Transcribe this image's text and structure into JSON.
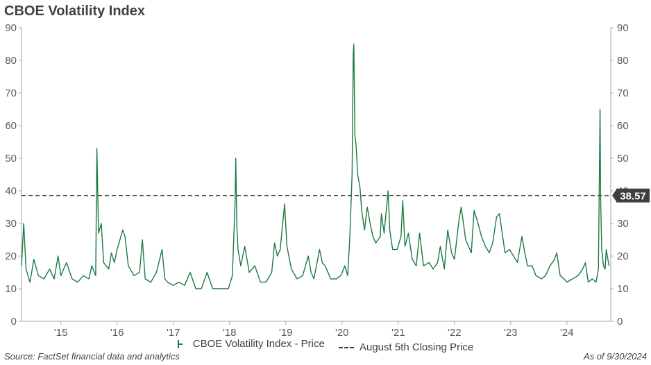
{
  "chart_data": {
    "type": "line",
    "title": "CBOE Volatility Index",
    "ylim": [
      0,
      90
    ],
    "yticks": [
      "0",
      "10",
      "20",
      "30",
      "40",
      "50",
      "60",
      "70",
      "80",
      "90"
    ],
    "xlim": [
      2014.3,
      2024.78
    ],
    "xticks": [
      {
        "label": "'15",
        "x": 2015.0
      },
      {
        "label": "'16",
        "x": 2016.0
      },
      {
        "label": "'17",
        "x": 2017.0
      },
      {
        "label": "'18",
        "x": 2018.0
      },
      {
        "label": "'19",
        "x": 2019.0
      },
      {
        "label": "'20",
        "x": 2020.0
      },
      {
        "label": "'21",
        "x": 2021.0
      },
      {
        "label": "'22",
        "x": 2022.0
      },
      {
        "label": "'23",
        "x": 2023.0
      },
      {
        "label": "'24",
        "x": 2024.0
      }
    ],
    "series": [
      {
        "name": "CBOE Volatility Index - Price",
        "color": "#1b7a43",
        "points": [
          [
            2014.3,
            17
          ],
          [
            2014.34,
            30
          ],
          [
            2014.38,
            16
          ],
          [
            2014.45,
            12
          ],
          [
            2014.52,
            19
          ],
          [
            2014.6,
            14
          ],
          [
            2014.7,
            13
          ],
          [
            2014.8,
            16
          ],
          [
            2014.88,
            13
          ],
          [
            2014.95,
            20
          ],
          [
            2015.0,
            14
          ],
          [
            2015.1,
            18
          ],
          [
            2015.2,
            13
          ],
          [
            2015.3,
            12
          ],
          [
            2015.4,
            14
          ],
          [
            2015.5,
            13
          ],
          [
            2015.55,
            17
          ],
          [
            2015.62,
            14
          ],
          [
            2015.64,
            53
          ],
          [
            2015.67,
            27
          ],
          [
            2015.72,
            30
          ],
          [
            2015.76,
            18
          ],
          [
            2015.85,
            16
          ],
          [
            2015.9,
            21
          ],
          [
            2015.95,
            18
          ],
          [
            2016.0,
            22
          ],
          [
            2016.05,
            25
          ],
          [
            2016.1,
            28
          ],
          [
            2016.14,
            26
          ],
          [
            2016.2,
            17
          ],
          [
            2016.3,
            14
          ],
          [
            2016.4,
            15
          ],
          [
            2016.45,
            25
          ],
          [
            2016.5,
            13
          ],
          [
            2016.6,
            12
          ],
          [
            2016.7,
            15
          ],
          [
            2016.8,
            22
          ],
          [
            2016.85,
            13
          ],
          [
            2016.9,
            12
          ],
          [
            2017.0,
            11
          ],
          [
            2017.1,
            12
          ],
          [
            2017.2,
            11
          ],
          [
            2017.3,
            15
          ],
          [
            2017.4,
            10
          ],
          [
            2017.5,
            10
          ],
          [
            2017.6,
            15
          ],
          [
            2017.7,
            10
          ],
          [
            2017.8,
            10
          ],
          [
            2017.9,
            10
          ],
          [
            2017.98,
            10
          ],
          [
            2018.05,
            14
          ],
          [
            2018.1,
            37
          ],
          [
            2018.11,
            50
          ],
          [
            2018.13,
            29
          ],
          [
            2018.15,
            22
          ],
          [
            2018.2,
            17
          ],
          [
            2018.27,
            23
          ],
          [
            2018.35,
            15
          ],
          [
            2018.45,
            17
          ],
          [
            2018.55,
            12
          ],
          [
            2018.65,
            12
          ],
          [
            2018.75,
            15
          ],
          [
            2018.8,
            24
          ],
          [
            2018.85,
            20
          ],
          [
            2018.9,
            22
          ],
          [
            2018.98,
            36
          ],
          [
            2019.02,
            23
          ],
          [
            2019.1,
            16
          ],
          [
            2019.2,
            13
          ],
          [
            2019.3,
            14
          ],
          [
            2019.4,
            20
          ],
          [
            2019.45,
            15
          ],
          [
            2019.5,
            13
          ],
          [
            2019.6,
            22
          ],
          [
            2019.65,
            18
          ],
          [
            2019.7,
            17
          ],
          [
            2019.8,
            13
          ],
          [
            2019.9,
            13
          ],
          [
            2019.98,
            14
          ],
          [
            2020.05,
            17
          ],
          [
            2020.1,
            14
          ],
          [
            2020.14,
            26
          ],
          [
            2020.18,
            45
          ],
          [
            2020.2,
            82
          ],
          [
            2020.21,
            85
          ],
          [
            2020.23,
            57
          ],
          [
            2020.25,
            54
          ],
          [
            2020.28,
            45
          ],
          [
            2020.32,
            41
          ],
          [
            2020.35,
            34
          ],
          [
            2020.4,
            28
          ],
          [
            2020.45,
            35
          ],
          [
            2020.5,
            30
          ],
          [
            2020.55,
            26
          ],
          [
            2020.6,
            24
          ],
          [
            2020.68,
            26
          ],
          [
            2020.7,
            33
          ],
          [
            2020.75,
            27
          ],
          [
            2020.82,
            40
          ],
          [
            2020.85,
            28
          ],
          [
            2020.9,
            22
          ],
          [
            2020.98,
            22
          ],
          [
            2021.05,
            26
          ],
          [
            2021.08,
            37
          ],
          [
            2021.12,
            23
          ],
          [
            2021.18,
            27
          ],
          [
            2021.25,
            19
          ],
          [
            2021.32,
            17
          ],
          [
            2021.38,
            27
          ],
          [
            2021.45,
            17
          ],
          [
            2021.55,
            18
          ],
          [
            2021.62,
            16
          ],
          [
            2021.7,
            18
          ],
          [
            2021.75,
            23
          ],
          [
            2021.82,
            16
          ],
          [
            2021.88,
            28
          ],
          [
            2021.95,
            21
          ],
          [
            2022.0,
            19
          ],
          [
            2022.08,
            31
          ],
          [
            2022.12,
            35
          ],
          [
            2022.2,
            25
          ],
          [
            2022.3,
            21
          ],
          [
            2022.35,
            34
          ],
          [
            2022.42,
            30
          ],
          [
            2022.48,
            26
          ],
          [
            2022.55,
            23
          ],
          [
            2022.62,
            21
          ],
          [
            2022.68,
            24
          ],
          [
            2022.75,
            32
          ],
          [
            2022.8,
            33
          ],
          [
            2022.85,
            27
          ],
          [
            2022.9,
            21
          ],
          [
            2022.98,
            22
          ],
          [
            2023.05,
            20
          ],
          [
            2023.12,
            18
          ],
          [
            2023.2,
            26
          ],
          [
            2023.25,
            21
          ],
          [
            2023.3,
            17
          ],
          [
            2023.38,
            17
          ],
          [
            2023.45,
            14
          ],
          [
            2023.55,
            13
          ],
          [
            2023.62,
            14
          ],
          [
            2023.7,
            17
          ],
          [
            2023.78,
            19
          ],
          [
            2023.82,
            21
          ],
          [
            2023.88,
            14
          ],
          [
            2023.95,
            13
          ],
          [
            2024.0,
            12
          ],
          [
            2024.1,
            13
          ],
          [
            2024.2,
            14
          ],
          [
            2024.28,
            16
          ],
          [
            2024.33,
            18
          ],
          [
            2024.38,
            12
          ],
          [
            2024.45,
            13
          ],
          [
            2024.52,
            12
          ],
          [
            2024.56,
            16
          ],
          [
            2024.59,
            65
          ],
          [
            2024.6,
            38
          ],
          [
            2024.62,
            22
          ],
          [
            2024.65,
            17
          ],
          [
            2024.68,
            16
          ],
          [
            2024.7,
            22
          ],
          [
            2024.73,
            19
          ],
          [
            2024.75,
            17
          ]
        ]
      },
      {
        "name": "August 5th Closing Price",
        "color": "#404040",
        "value": 38.57,
        "value_label": "38.57",
        "style": "dashed"
      }
    ]
  },
  "legend": {
    "vix_label": "CBOE Volatility Index - Price",
    "august_label": "August 5th Closing Price"
  },
  "footer": {
    "source": "Source: FactSet financial data and analytics",
    "asof": "As of 9/30/2024"
  }
}
